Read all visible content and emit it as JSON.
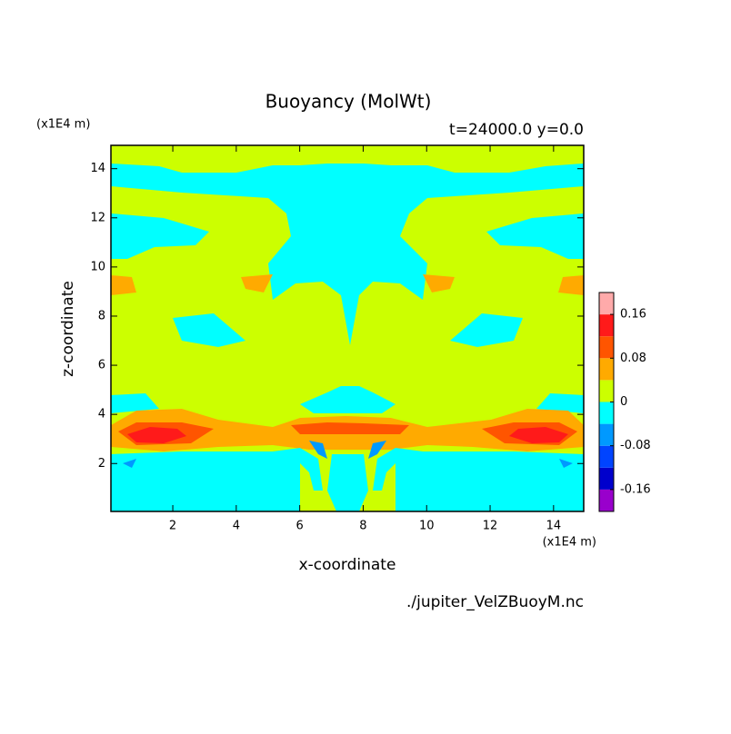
{
  "chart_data": {
    "type": "contour",
    "title": "Buoyancy (MolWt)",
    "subtitle": "t=24000.0 y=0.0",
    "x_label": "x-coordinate",
    "y_label": "z-coordinate",
    "x_unit": "(x1E4 m)",
    "y_unit": "(x1E4 m)",
    "footnote": "./jupiter_VelZBuoyM.nc",
    "xlim": [
      0.05,
      14.95
    ],
    "ylim": [
      0.05,
      14.95
    ],
    "xticks": [
      2,
      4,
      6,
      8,
      10,
      12,
      14
    ],
    "yticks": [
      2,
      4,
      6,
      8,
      10,
      12,
      14
    ],
    "levels": [
      -0.2,
      -0.16,
      -0.12,
      -0.08,
      -0.04,
      0,
      0.04,
      0.08,
      0.12,
      0.16,
      0.2
    ],
    "colors": [
      "#9900cc",
      "#0000cc",
      "#0044ff",
      "#0099ff",
      "#00ffff",
      "#ccff00",
      "#ffaa00",
      "#ff5500",
      "#ff1a1a",
      "#ffaaaa"
    ],
    "cticks": [
      -0.16,
      -0.08,
      0,
      0.08,
      0.16
    ]
  }
}
